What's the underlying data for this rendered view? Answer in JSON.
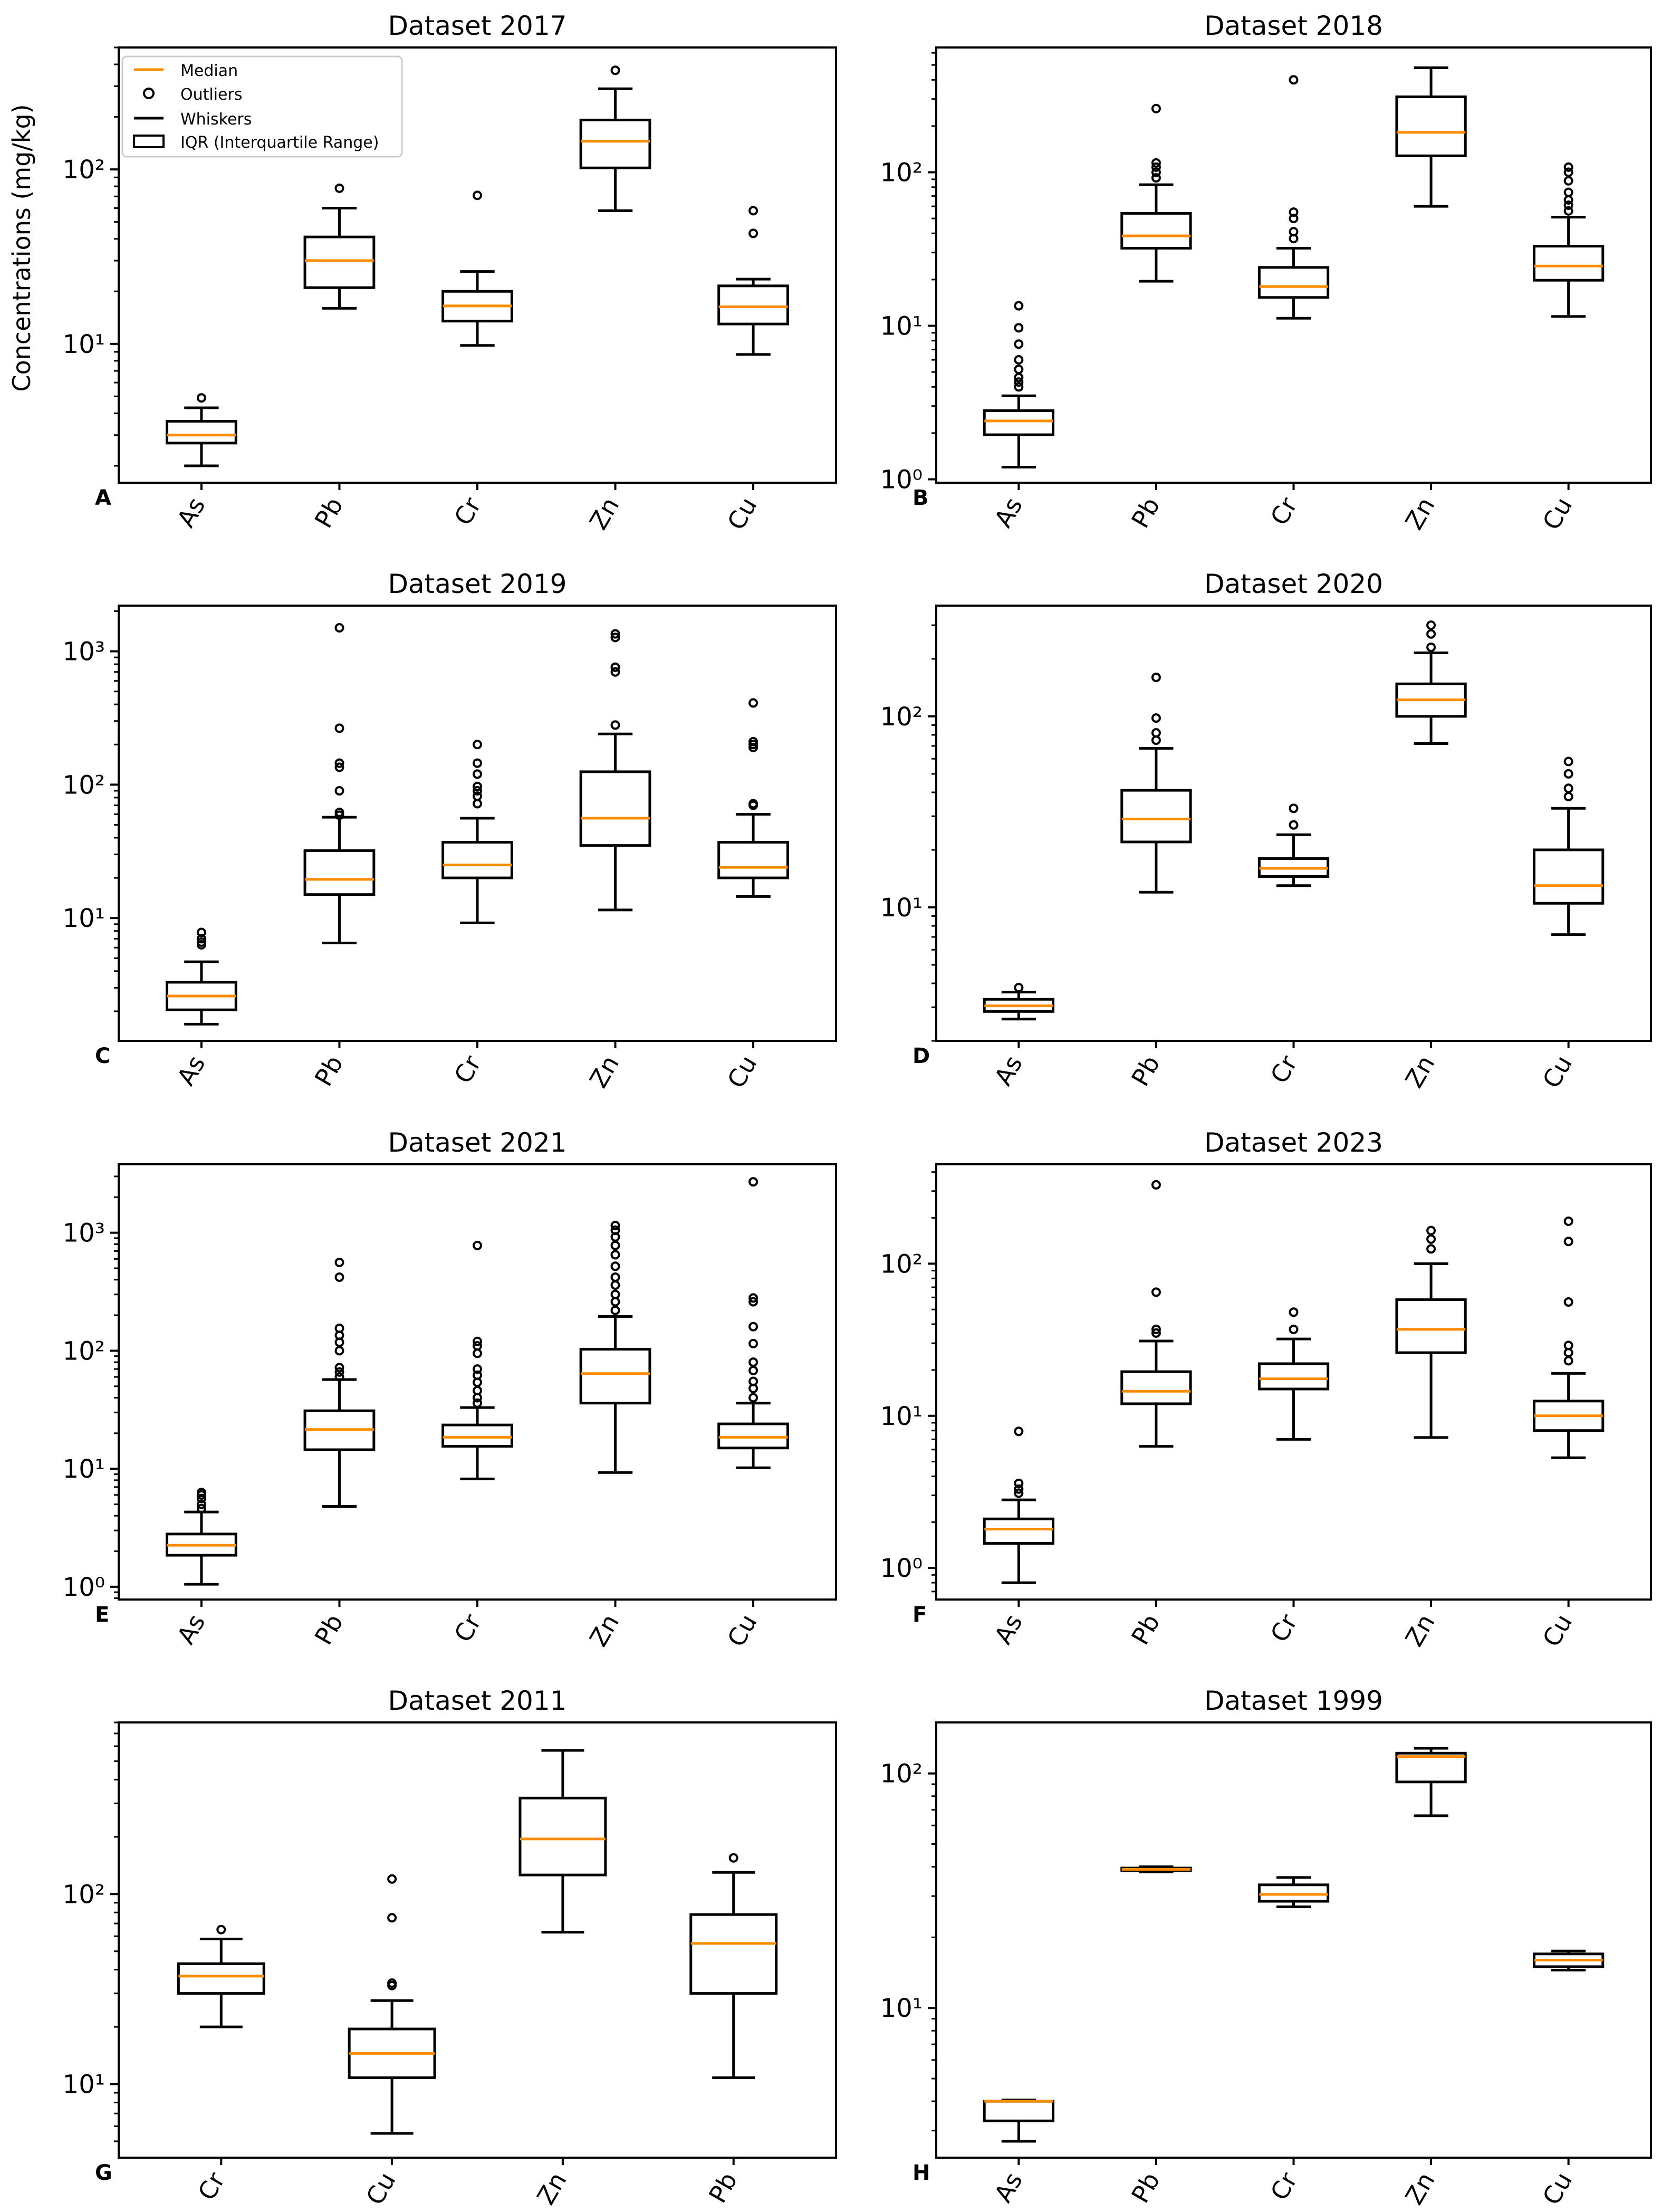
{
  "figure": {
    "ylabel": "Concentrations (mg/kg)"
  },
  "legend": {
    "median": "Median",
    "outliers": "Outliers",
    "whiskers": "Whiskers",
    "iqr": "IQR (Interquartile Range)"
  },
  "colors": {
    "median": "#ff8c00",
    "box": "#000000",
    "background": "#ffffff"
  },
  "chart_data": [
    {
      "type": "box",
      "panel_letter": "A",
      "title": "Dataset 2017",
      "yscale": "log",
      "ylim": [
        1.6,
        500
      ],
      "yticks": [
        10,
        100
      ],
      "ytick_labels": [
        "10¹",
        "10²"
      ],
      "categories": [
        "As",
        "Pb",
        "Cr",
        "Zn",
        "Cu"
      ],
      "boxes": [
        {
          "label": "As",
          "min": 2.0,
          "q1": 2.7,
          "median": 3.0,
          "q3": 3.6,
          "max": 4.3,
          "outliers": [
            4.9
          ]
        },
        {
          "label": "Pb",
          "min": 16,
          "q1": 21,
          "median": 30,
          "q3": 41,
          "max": 60,
          "outliers": [
            78
          ]
        },
        {
          "label": "Cr",
          "min": 9.8,
          "q1": 13.5,
          "median": 16.5,
          "q3": 20,
          "max": 26,
          "outliers": [
            71
          ]
        },
        {
          "label": "Zn",
          "min": 58,
          "q1": 102,
          "median": 145,
          "q3": 192,
          "max": 290,
          "outliers": [
            370
          ]
        },
        {
          "label": "Cu",
          "min": 8.7,
          "q1": 13,
          "median": 16.3,
          "q3": 21.5,
          "max": 23.5,
          "outliers": [
            43,
            58
          ]
        }
      ]
    },
    {
      "type": "box",
      "panel_letter": "B",
      "title": "Dataset 2018",
      "yscale": "log",
      "ylim": [
        0.95,
        650
      ],
      "yticks": [
        1,
        10,
        100
      ],
      "ytick_labels": [
        "10⁰",
        "10¹",
        "10²"
      ],
      "categories": [
        "As",
        "Pb",
        "Cr",
        "Zn",
        "Cu"
      ],
      "boxes": [
        {
          "label": "As",
          "min": 1.2,
          "q1": 1.95,
          "median": 2.4,
          "q3": 2.8,
          "max": 3.5,
          "outliers": [
            4.0,
            4.3,
            4.6,
            5.2,
            6.0,
            7.6,
            9.7,
            13.5
          ]
        },
        {
          "label": "Pb",
          "min": 19.5,
          "q1": 32,
          "median": 38.5,
          "q3": 54,
          "max": 83,
          "outliers": [
            92,
            100,
            108,
            115,
            260
          ]
        },
        {
          "label": "Cr",
          "min": 11.2,
          "q1": 15.3,
          "median": 18,
          "q3": 24,
          "max": 32,
          "outliers": [
            37,
            41,
            50,
            55,
            400
          ]
        },
        {
          "label": "Zn",
          "min": 60,
          "q1": 128,
          "median": 182,
          "q3": 310,
          "max": 480,
          "outliers": []
        },
        {
          "label": "Cu",
          "min": 11.5,
          "q1": 19.8,
          "median": 24.5,
          "q3": 33,
          "max": 51,
          "outliers": [
            56,
            61,
            66,
            74,
            88,
            100,
            108
          ]
        }
      ]
    },
    {
      "type": "box",
      "panel_letter": "C",
      "title": "Dataset 2019",
      "yscale": "log",
      "ylim": [
        1.2,
        2200
      ],
      "yticks": [
        10,
        100,
        1000
      ],
      "ytick_labels": [
        "10¹",
        "10²",
        "10³"
      ],
      "categories": [
        "As",
        "Pb",
        "Cr",
        "Zn",
        "Cu"
      ],
      "boxes": [
        {
          "label": "As",
          "min": 1.6,
          "q1": 2.05,
          "median": 2.6,
          "q3": 3.3,
          "max": 4.7,
          "outliers": [
            6.3,
            6.6,
            7.0,
            7.8
          ]
        },
        {
          "label": "Pb",
          "min": 6.5,
          "q1": 15,
          "median": 19.5,
          "q3": 32,
          "max": 57,
          "outliers": [
            59,
            62,
            90,
            135,
            145,
            265,
            1500
          ]
        },
        {
          "label": "Cr",
          "min": 9.2,
          "q1": 20,
          "median": 25,
          "q3": 37,
          "max": 56,
          "outliers": [
            72,
            82,
            90,
            97,
            120,
            145,
            200
          ]
        },
        {
          "label": "Zn",
          "min": 11.5,
          "q1": 35,
          "median": 56,
          "q3": 125,
          "max": 240,
          "outliers": [
            280,
            700,
            760,
            1270,
            1350
          ]
        },
        {
          "label": "Cu",
          "min": 14.5,
          "q1": 20,
          "median": 24,
          "q3": 37,
          "max": 60,
          "outliers": [
            70,
            72,
            190,
            200,
            210,
            410
          ]
        }
      ]
    },
    {
      "type": "box",
      "panel_letter": "D",
      "title": "Dataset 2020",
      "yscale": "log",
      "ylim": [
        2.0,
        380
      ],
      "yticks": [
        10,
        100
      ],
      "ytick_labels": [
        "10¹",
        "10²"
      ],
      "categories": [
        "As",
        "Pb",
        "Cr",
        "Zn",
        "Cu"
      ],
      "boxes": [
        {
          "label": "As",
          "min": 2.6,
          "q1": 2.85,
          "median": 3.05,
          "q3": 3.3,
          "max": 3.6,
          "outliers": [
            3.8
          ]
        },
        {
          "label": "Pb",
          "min": 12,
          "q1": 22,
          "median": 29,
          "q3": 41,
          "max": 68,
          "outliers": [
            75,
            82,
            98,
            160
          ]
        },
        {
          "label": "Cr",
          "min": 13,
          "q1": 14.5,
          "median": 16,
          "q3": 18,
          "max": 24,
          "outliers": [
            27,
            33
          ]
        },
        {
          "label": "Zn",
          "min": 72,
          "q1": 100,
          "median": 122,
          "q3": 148,
          "max": 215,
          "outliers": [
            230,
            270,
            300
          ]
        },
        {
          "label": "Cu",
          "min": 7.2,
          "q1": 10.5,
          "median": 13,
          "q3": 20,
          "max": 33,
          "outliers": [
            38,
            42,
            50,
            58
          ]
        }
      ]
    },
    {
      "type": "box",
      "panel_letter": "E",
      "title": "Dataset 2021",
      "yscale": "log",
      "ylim": [
        0.78,
        3800
      ],
      "yticks": [
        1,
        10,
        100,
        1000
      ],
      "ytick_labels": [
        "10⁰",
        "10¹",
        "10²",
        "10³"
      ],
      "categories": [
        "As",
        "Pb",
        "Cr",
        "Zn",
        "Cu"
      ],
      "boxes": [
        {
          "label": "As",
          "min": 1.05,
          "q1": 1.85,
          "median": 2.25,
          "q3": 2.8,
          "max": 4.3,
          "outliers": [
            4.6,
            5.0,
            5.6,
            6.0,
            6.3
          ]
        },
        {
          "label": "Pb",
          "min": 4.8,
          "q1": 14.5,
          "median": 21.5,
          "q3": 31,
          "max": 57,
          "outliers": [
            60,
            66,
            72,
            100,
            118,
            135,
            155,
            420,
            560
          ]
        },
        {
          "label": "Cr",
          "min": 8.2,
          "q1": 15.5,
          "median": 18.5,
          "q3": 23.5,
          "max": 33,
          "outliers": [
            36,
            40,
            46,
            54,
            62,
            70,
            95,
            110,
            120,
            780
          ]
        },
        {
          "label": "Zn",
          "min": 9.3,
          "q1": 36,
          "median": 64,
          "q3": 103,
          "max": 195,
          "outliers": [
            220,
            260,
            300,
            360,
            420,
            520,
            650,
            780,
            920,
            1050,
            1150
          ]
        },
        {
          "label": "Cu",
          "min": 10.2,
          "q1": 15,
          "median": 18.5,
          "q3": 24,
          "max": 36,
          "outliers": [
            40,
            48,
            55,
            68,
            80,
            115,
            160,
            260,
            280,
            2700
          ]
        }
      ]
    },
    {
      "type": "box",
      "panel_letter": "F",
      "title": "Dataset 2023",
      "yscale": "log",
      "ylim": [
        0.62,
        450
      ],
      "yticks": [
        1,
        10,
        100
      ],
      "ytick_labels": [
        "10⁰",
        "10¹",
        "10²"
      ],
      "categories": [
        "As",
        "Pb",
        "Cr",
        "Zn",
        "Cu"
      ],
      "boxes": [
        {
          "label": "As",
          "min": 0.8,
          "q1": 1.45,
          "median": 1.8,
          "q3": 2.1,
          "max": 2.8,
          "outliers": [
            3.1,
            3.3,
            3.6,
            7.9
          ]
        },
        {
          "label": "Pb",
          "min": 6.3,
          "q1": 12,
          "median": 14.5,
          "q3": 19.5,
          "max": 31,
          "outliers": [
            35,
            37,
            65,
            330
          ]
        },
        {
          "label": "Cr",
          "min": 7,
          "q1": 15,
          "median": 17.5,
          "q3": 22,
          "max": 32,
          "outliers": [
            37,
            48
          ]
        },
        {
          "label": "Zn",
          "min": 7.2,
          "q1": 26,
          "median": 37,
          "q3": 58,
          "max": 100,
          "outliers": [
            125,
            145,
            165
          ]
        },
        {
          "label": "Cu",
          "min": 5.3,
          "q1": 8,
          "median": 10,
          "q3": 12.5,
          "max": 19,
          "outliers": [
            23,
            26,
            29,
            56,
            140,
            190
          ]
        }
      ]
    },
    {
      "type": "box",
      "panel_letter": "G",
      "title": "Dataset 2011",
      "yscale": "log",
      "ylim": [
        4.1,
        800
      ],
      "yticks": [
        10,
        100
      ],
      "ytick_labels": [
        "10¹",
        "10²"
      ],
      "categories": [
        "Cr",
        "Cu",
        "Zn",
        "Pb"
      ],
      "boxes": [
        {
          "label": "Cr",
          "min": 20,
          "q1": 30,
          "median": 37,
          "q3": 43,
          "max": 58,
          "outliers": [
            65
          ]
        },
        {
          "label": "Cu",
          "min": 5.5,
          "q1": 10.8,
          "median": 14.5,
          "q3": 19.5,
          "max": 27.5,
          "outliers": [
            33,
            34,
            75,
            120
          ]
        },
        {
          "label": "Zn",
          "min": 63,
          "q1": 126,
          "median": 195,
          "q3": 320,
          "max": 570,
          "outliers": []
        },
        {
          "label": "Pb",
          "min": 10.8,
          "q1": 30,
          "median": 55,
          "q3": 78,
          "max": 130,
          "outliers": [
            155
          ]
        }
      ]
    },
    {
      "type": "box",
      "panel_letter": "H",
      "title": "Dataset 1999",
      "yscale": "log",
      "ylim": [
        2.3,
        165
      ],
      "yticks": [
        10,
        100
      ],
      "ytick_labels": [
        "10¹",
        "10²"
      ],
      "categories": [
        "As",
        "Pb",
        "Cr",
        "Zn",
        "Cu"
      ],
      "boxes": [
        {
          "label": "As",
          "min": 2.7,
          "q1": 3.3,
          "median": 4.0,
          "q3": 4.0,
          "max": 4.05,
          "outliers": []
        },
        {
          "label": "Pb",
          "min": 38,
          "q1": 38.5,
          "median": 39,
          "q3": 39.5,
          "max": 40,
          "outliers": []
        },
        {
          "label": "Cr",
          "min": 27,
          "q1": 28.5,
          "median": 30.5,
          "q3": 33.5,
          "max": 36,
          "outliers": []
        },
        {
          "label": "Zn",
          "min": 66,
          "q1": 92,
          "median": 118,
          "q3": 122,
          "max": 128,
          "outliers": []
        },
        {
          "label": "Cu",
          "min": 14.5,
          "q1": 15,
          "median": 16,
          "q3": 17,
          "max": 17.5,
          "outliers": []
        }
      ]
    }
  ]
}
